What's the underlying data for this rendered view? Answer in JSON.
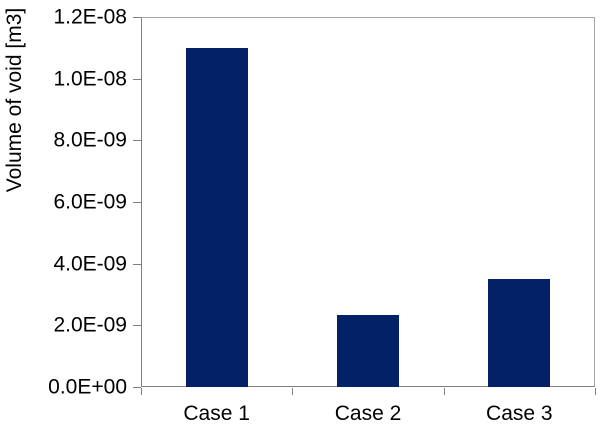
{
  "chart_data": {
    "type": "bar",
    "title": "",
    "categories": [
      "Case 1",
      "Case 2",
      "Case 3"
    ],
    "values": [
      1.1e-08,
      2.35e-09,
      3.5e-09
    ],
    "xlabel": "",
    "ylabel": "Volume of void [m3]",
    "ylim": [
      0,
      1.2e-08
    ],
    "ytick_labels": [
      "0.0E+00",
      "2.0E-09",
      "4.0E-09",
      "6.0E-09",
      "8.0E-09",
      "1.0E-08",
      "1.2E-08"
    ],
    "ytick_values": [
      0,
      2e-09,
      4e-09,
      6e-09,
      8e-09,
      1e-08,
      1.2e-08
    ],
    "grid": false,
    "legend": false,
    "bar_color": "#032166",
    "axis_color": "#808080",
    "border_color": "#a6a6a6",
    "text_color": "#000000"
  }
}
